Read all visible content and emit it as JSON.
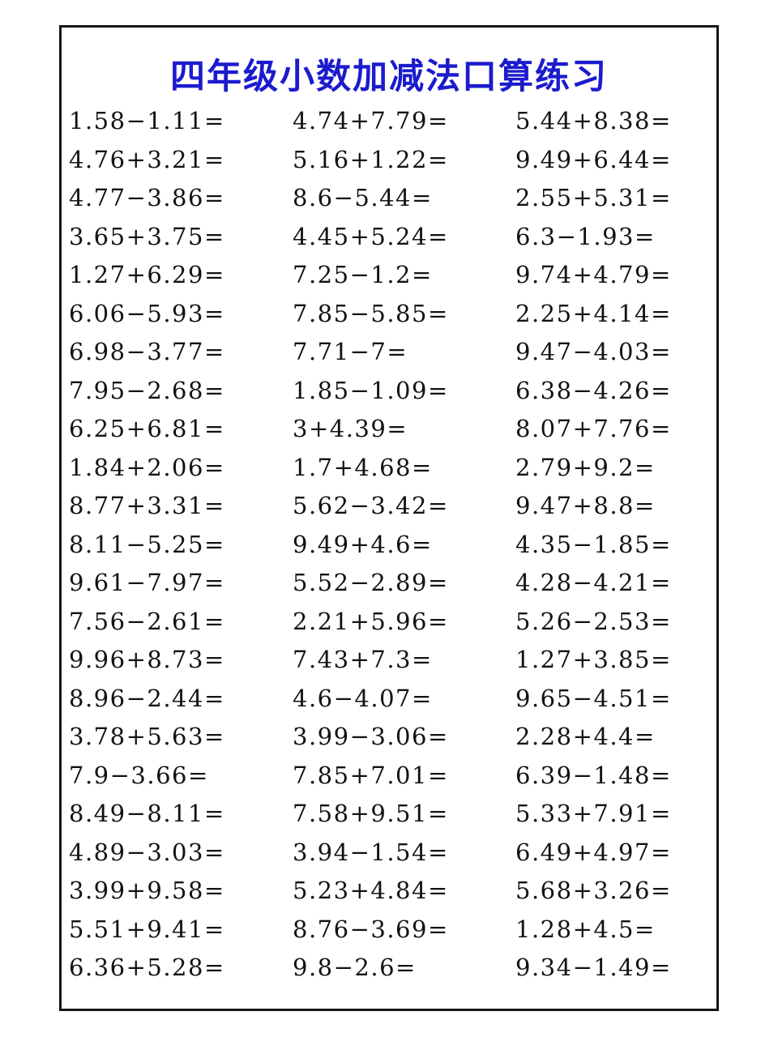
{
  "title": "四年级小数加减法口算练习",
  "colors": {
    "title": "#1b1bce",
    "text": "#121212",
    "border": "#161616",
    "background": "#ffffff"
  },
  "worksheet": {
    "columns": 3,
    "rows": 23,
    "problems": [
      [
        "1.58−1.11=",
        "4.74+7.79=",
        "5.44+8.38="
      ],
      [
        "4.76+3.21=",
        "5.16+1.22=",
        "9.49+6.44="
      ],
      [
        "4.77−3.86=",
        "8.6−5.44=",
        "2.55+5.31="
      ],
      [
        "3.65+3.75=",
        "4.45+5.24=",
        "6.3−1.93="
      ],
      [
        "1.27+6.29=",
        "7.25−1.2=",
        "9.74+4.79="
      ],
      [
        "6.06−5.93=",
        "7.85−5.85=",
        "2.25+4.14="
      ],
      [
        "6.98−3.77=",
        "7.71−7=",
        "9.47−4.03="
      ],
      [
        "7.95−2.68=",
        "1.85−1.09=",
        "6.38−4.26="
      ],
      [
        "6.25+6.81=",
        "3+4.39=",
        "8.07+7.76="
      ],
      [
        "1.84+2.06=",
        "1.7+4.68=",
        "2.79+9.2="
      ],
      [
        "8.77+3.31=",
        "5.62−3.42=",
        "9.47+8.8="
      ],
      [
        "8.11−5.25=",
        "9.49+4.6=",
        "4.35−1.85="
      ],
      [
        "9.61−7.97=",
        "5.52−2.89=",
        "4.28−4.21="
      ],
      [
        "7.56−2.61=",
        "2.21+5.96=",
        "5.26−2.53="
      ],
      [
        "9.96+8.73=",
        "7.43+7.3=",
        "1.27+3.85="
      ],
      [
        "8.96−2.44=",
        "4.6−4.07=",
        "9.65−4.51="
      ],
      [
        "3.78+5.63=",
        "3.99−3.06=",
        "2.28+4.4="
      ],
      [
        "7.9−3.66=",
        "7.85+7.01=",
        "6.39−1.48="
      ],
      [
        "8.49−8.11=",
        "7.58+9.51=",
        "5.33+7.91="
      ],
      [
        "4.89−3.03=",
        "3.94−1.54=",
        "6.49+4.97="
      ],
      [
        "3.99+9.58=",
        "5.23+4.84=",
        "5.68+3.26="
      ],
      [
        "5.51+9.41=",
        "8.76−3.69=",
        "1.28+4.5="
      ],
      [
        "6.36+5.28=",
        "9.8−2.6=",
        "9.34−1.49="
      ]
    ]
  }
}
